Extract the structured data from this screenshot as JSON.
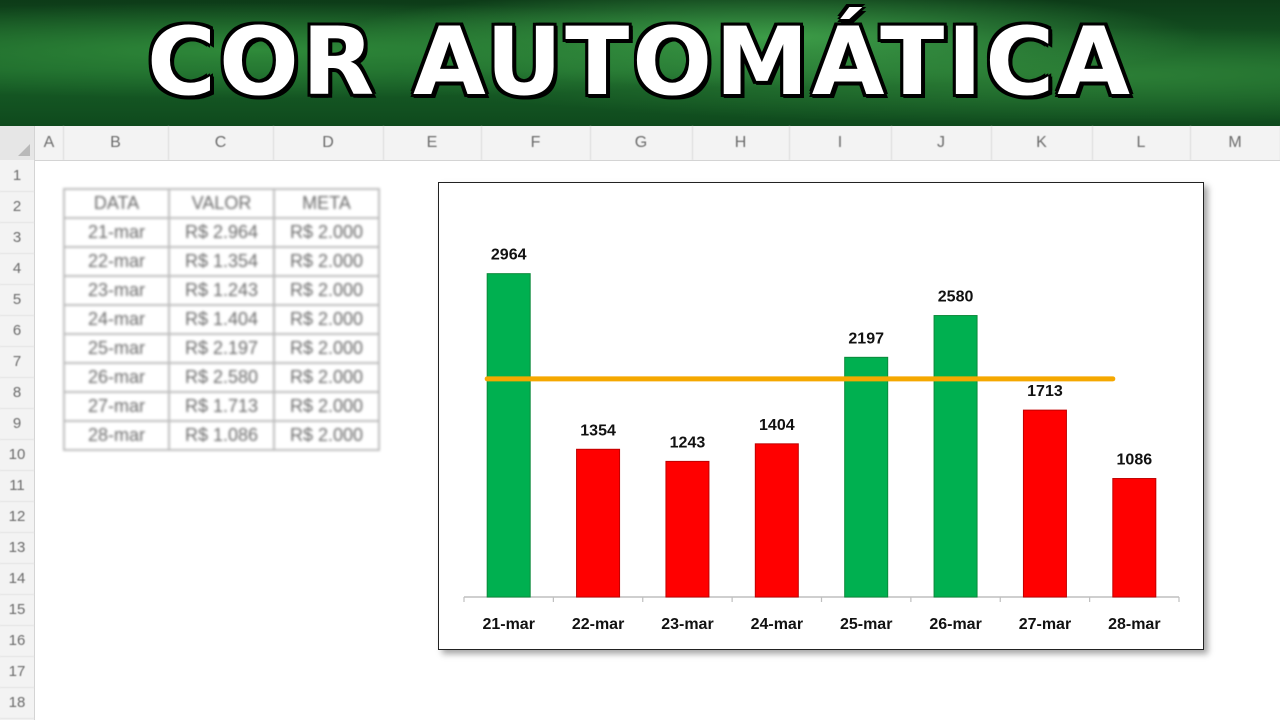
{
  "banner": {
    "title": "COR AUTOMÁTICA"
  },
  "sheet": {
    "columns": [
      "A",
      "B",
      "C",
      "D",
      "E",
      "F",
      "G",
      "H",
      "I",
      "J",
      "K",
      "L",
      "M"
    ],
    "rows": [
      "1",
      "2",
      "3",
      "4",
      "5",
      "6",
      "7",
      "8",
      "9",
      "10",
      "11",
      "12",
      "13",
      "14",
      "15",
      "16",
      "17",
      "18"
    ]
  },
  "table": {
    "headers": [
      "DATA",
      "VALOR",
      "META"
    ],
    "rows": [
      [
        "21-mar",
        "R$ 2.964",
        "R$ 2.000"
      ],
      [
        "22-mar",
        "R$ 1.354",
        "R$ 2.000"
      ],
      [
        "23-mar",
        "R$ 1.243",
        "R$ 2.000"
      ],
      [
        "24-mar",
        "R$ 1.404",
        "R$ 2.000"
      ],
      [
        "25-mar",
        "R$ 2.197",
        "R$ 2.000"
      ],
      [
        "26-mar",
        "R$ 2.580",
        "R$ 2.000"
      ],
      [
        "27-mar",
        "R$ 1.713",
        "R$ 2.000"
      ],
      [
        "28-mar",
        "R$ 1.086",
        "R$ 2.000"
      ]
    ]
  },
  "chart_data": {
    "type": "bar",
    "categories": [
      "21-mar",
      "22-mar",
      "23-mar",
      "24-mar",
      "25-mar",
      "26-mar",
      "27-mar",
      "28-mar"
    ],
    "values": [
      2964,
      1354,
      1243,
      1404,
      2197,
      2580,
      1713,
      1086
    ],
    "target": 2000,
    "ylim": [
      0,
      3300
    ],
    "colors": {
      "above": "#00b050",
      "below": "#ff0000",
      "target_line": "#f5a800",
      "bar_border_above": "#0a8a3a",
      "bar_border_below": "#c00000"
    },
    "data_labels": true,
    "legend": "none",
    "grid": false,
    "title": ""
  }
}
